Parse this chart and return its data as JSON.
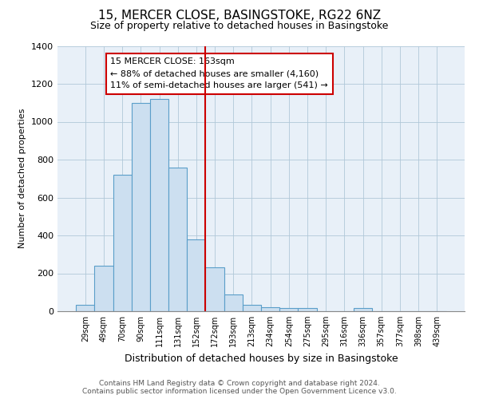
{
  "title": "15, MERCER CLOSE, BASINGSTOKE, RG22 6NZ",
  "subtitle": "Size of property relative to detached houses in Basingstoke",
  "xlabel": "Distribution of detached houses by size in Basingstoke",
  "ylabel": "Number of detached properties",
  "bar_labels": [
    "29sqm",
    "49sqm",
    "70sqm",
    "90sqm",
    "111sqm",
    "131sqm",
    "152sqm",
    "172sqm",
    "193sqm",
    "213sqm",
    "234sqm",
    "254sqm",
    "275sqm",
    "295sqm",
    "316sqm",
    "336sqm",
    "357sqm",
    "377sqm",
    "398sqm",
    "439sqm"
  ],
  "bar_values": [
    35,
    240,
    720,
    1100,
    1120,
    760,
    380,
    230,
    90,
    35,
    20,
    15,
    15,
    0,
    0,
    15,
    0,
    0,
    0,
    0
  ],
  "bar_color": "#ccdff0",
  "bar_edge_color": "#5a9ec9",
  "vline_x": 6.5,
  "vline_color": "#cc0000",
  "annotation_title": "15 MERCER CLOSE: 163sqm",
  "annotation_line1": "← 88% of detached houses are smaller (4,160)",
  "annotation_line2": "11% of semi-detached houses are larger (541) →",
  "annotation_box_edge": "#cc0000",
  "ylim": [
    0,
    1400
  ],
  "yticks": [
    0,
    200,
    400,
    600,
    800,
    1000,
    1200,
    1400
  ],
  "footer_line1": "Contains HM Land Registry data © Crown copyright and database right 2024.",
  "footer_line2": "Contains public sector information licensed under the Open Government Licence v3.0.",
  "plot_bg_color": "#e8f0f8"
}
